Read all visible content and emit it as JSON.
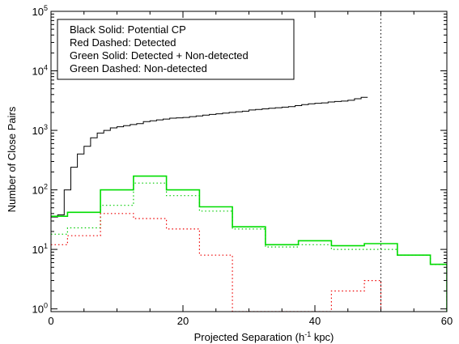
{
  "chart_data": {
    "type": "line",
    "xlabel": "Projected Separation (h",
    "xlabel_sup": "-1",
    "xlabel_tail": " kpc)",
    "ylabel": "Number of Close Pairs",
    "xlim": [
      0,
      60
    ],
    "ylim": [
      0.9,
      100000
    ],
    "y_scale": "log",
    "grid": false,
    "x_ticks": [
      {
        "value": 0,
        "label": "0"
      },
      {
        "value": 20,
        "label": "20"
      },
      {
        "value": 40,
        "label": "40"
      },
      {
        "value": 60,
        "label": "60"
      }
    ],
    "y_ticks": [
      {
        "value": 1,
        "base": "10",
        "exp": "0"
      },
      {
        "value": 10,
        "base": "10",
        "exp": "1"
      },
      {
        "value": 100,
        "base": "10",
        "exp": "2"
      },
      {
        "value": 1000,
        "base": "10",
        "exp": "3"
      },
      {
        "value": 10000,
        "base": "10",
        "exp": "4"
      },
      {
        "value": 100000,
        "base": "10",
        "exp": "5"
      }
    ],
    "legend": {
      "placement": "top-left",
      "entries": [
        "Black Solid: Potential CP",
        "Red Dashed: Detected",
        "Green Solid: Detected + Non-detected",
        "Green Dashed: Non-detected"
      ]
    },
    "reference_line": {
      "x": 50,
      "style": "dotted",
      "color": "#000000"
    },
    "series": [
      {
        "color": "#000000",
        "style": "solid",
        "width": 1,
        "edges": [
          0,
          1,
          2,
          3,
          4,
          5,
          6,
          7,
          8,
          9,
          10,
          11,
          12,
          13,
          14,
          15,
          16,
          17,
          18,
          19,
          20,
          21,
          22,
          23,
          24,
          25,
          26,
          27,
          28,
          29,
          30,
          31,
          32,
          33,
          34,
          35,
          36,
          37,
          38,
          39,
          40,
          41,
          42,
          43,
          44,
          45,
          46,
          47,
          48
        ],
        "values": [
          35,
          38,
          100,
          240,
          400,
          540,
          750,
          900,
          1000,
          1100,
          1150,
          1200,
          1250,
          1300,
          1400,
          1450,
          1500,
          1550,
          1600,
          1620,
          1650,
          1700,
          1750,
          1800,
          1850,
          1900,
          1950,
          2000,
          2050,
          2100,
          2200,
          2250,
          2300,
          2350,
          2400,
          2450,
          2500,
          2600,
          2700,
          2800,
          2850,
          2900,
          3000,
          3050,
          3100,
          3200,
          3400,
          3600
        ]
      },
      {
        "color": "#00dd00",
        "style": "solid",
        "width": 1.6,
        "edges": [
          0,
          2.5,
          7.5,
          12.5,
          17.5,
          22.5,
          27.5,
          32.5,
          37.5,
          42.5,
          47.5,
          52.5,
          57.5,
          62.5
        ],
        "values": [
          36,
          42,
          100,
          170,
          100,
          52,
          24,
          12,
          14,
          11.5,
          12.5,
          8,
          5.6,
          0.9
        ]
      },
      {
        "color": "#00cc00",
        "style": "dotted",
        "width": 1.2,
        "edges": [
          0,
          2.5,
          7.5,
          12.5,
          17.5,
          22.5,
          27.5,
          32.5,
          37.5,
          42.5,
          47.5,
          52.5,
          57.5,
          62.5
        ],
        "values": [
          18,
          23,
          55,
          130,
          80,
          44,
          22,
          11,
          12,
          10,
          10,
          8,
          5.6,
          0.9
        ]
      },
      {
        "color": "#ee0000",
        "style": "dotted",
        "width": 1.2,
        "edges": [
          0,
          2.5,
          7.5,
          12.5,
          17.5,
          22.5,
          27.5,
          32.5,
          37.5,
          42.5,
          47.5,
          50
        ],
        "values": [
          12,
          17,
          40,
          33,
          22,
          8,
          0.9,
          0.9,
          0.9,
          2,
          3,
          0.9
        ]
      }
    ]
  }
}
